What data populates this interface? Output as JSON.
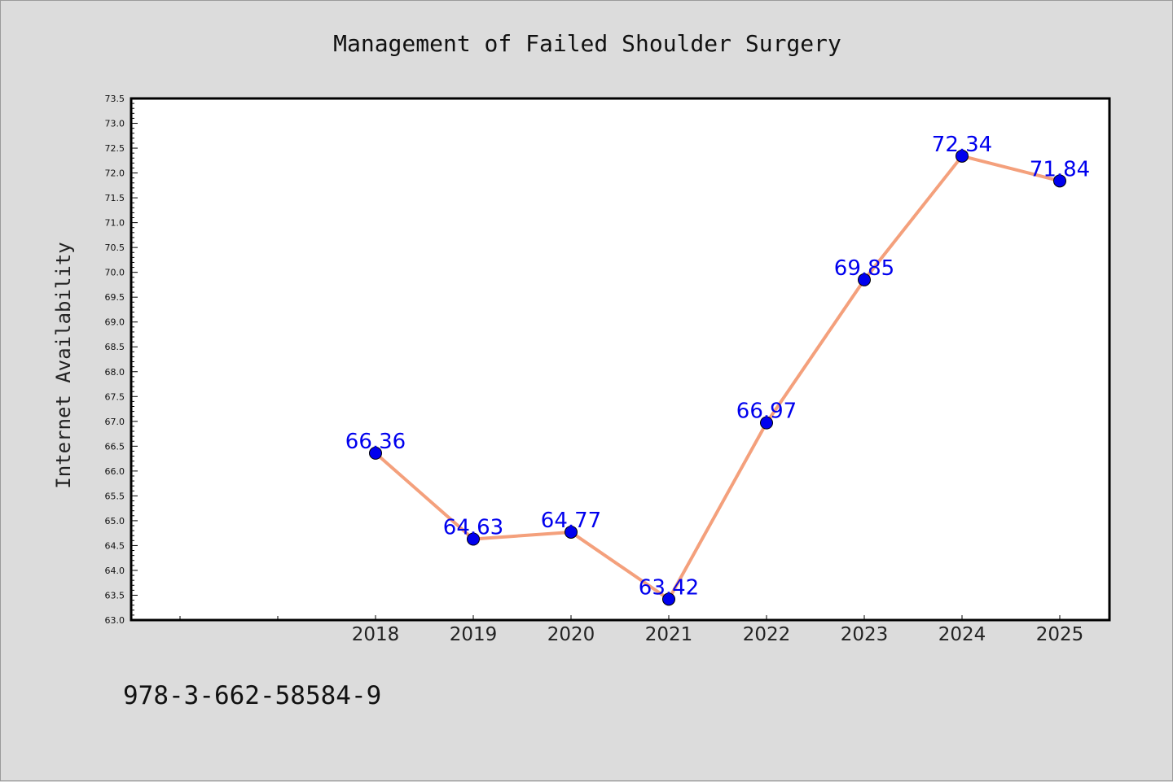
{
  "chart_data": {
    "type": "line",
    "title": "Management of Failed Shoulder Surgery",
    "ylabel": "Internet Availability",
    "xlabel": "",
    "categories": [
      "2018",
      "2019",
      "2020",
      "2021",
      "2022",
      "2023",
      "2024",
      "2025"
    ],
    "values": [
      66.36,
      64.63,
      64.77,
      63.42,
      66.97,
      69.85,
      72.34,
      71.84
    ],
    "data_labels": [
      "66.36",
      "64.63",
      "64.77",
      "63.42",
      "66.97",
      "69.85",
      "72.34",
      "71.84"
    ],
    "ylim": [
      63.0,
      73.5
    ],
    "yticks": [
      "63.0",
      "63.5",
      "64.0",
      "64.5",
      "65.0",
      "65.5",
      "66.0",
      "66.5",
      "67.0",
      "67.5",
      "68.0",
      "68.5",
      "69.0",
      "69.5",
      "70.0",
      "70.5",
      "71.0",
      "71.5",
      "72.0",
      "72.5",
      "73.0",
      "73.5"
    ],
    "grid": false,
    "colors": {
      "line": "#f4a07c",
      "marker": "#0000ee",
      "label": "#0000ee",
      "plot_background": "#ffffff",
      "page_background": "#dcdcdc"
    }
  },
  "footer": {
    "isbn": "978-3-662-58584-9"
  }
}
